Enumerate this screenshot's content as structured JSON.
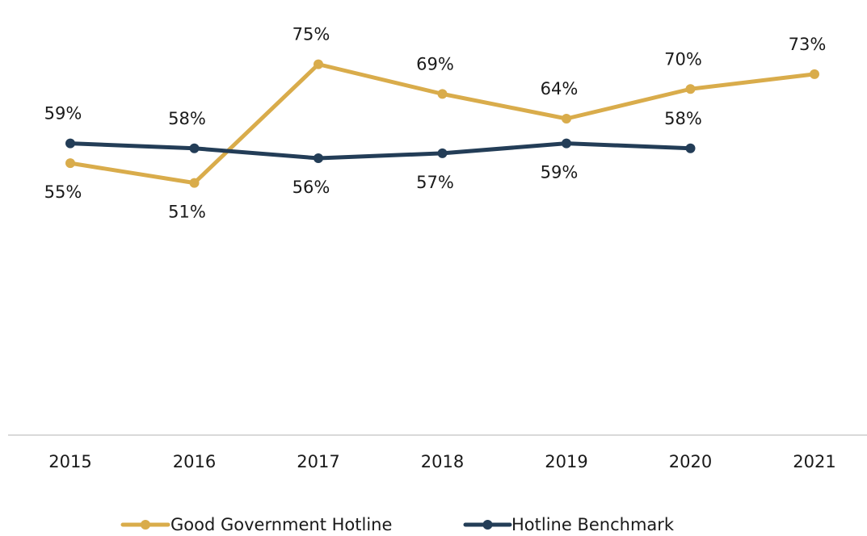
{
  "chart_data": {
    "type": "line",
    "x": [
      "2015",
      "2016",
      "2017",
      "2018",
      "2019",
      "2020",
      "2021"
    ],
    "series": [
      {
        "name": "Good Government Hotline",
        "color": "#D9AC4B",
        "values": [
          55,
          51,
          75,
          69,
          64,
          70,
          73
        ],
        "labels": [
          "55%",
          "51%",
          "75%",
          "69%",
          "64%",
          "70%",
          "73%"
        ],
        "label_positions": [
          "below",
          "below",
          "above",
          "above",
          "above",
          "above",
          "above"
        ]
      },
      {
        "name": "Hotline Benchmark",
        "color": "#233D57",
        "values": [
          59,
          58,
          56,
          57,
          59,
          58,
          null
        ],
        "labels": [
          "59%",
          "58%",
          "56%",
          "57%",
          "59%",
          "58%",
          null
        ],
        "label_positions": [
          "above",
          "above",
          "below",
          "below",
          "below",
          "above",
          null
        ]
      }
    ],
    "ylim": [
      0,
      80
    ],
    "value_unit": "%",
    "grid": false,
    "legend_position": "bottom",
    "axis_line_color": "#D9D9D9"
  }
}
